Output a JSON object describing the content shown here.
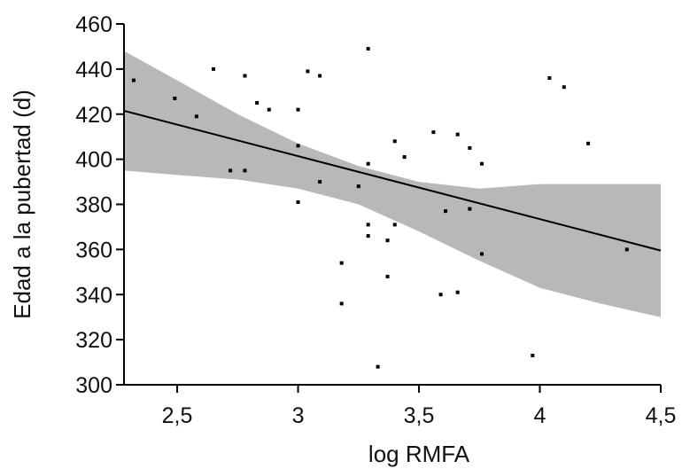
{
  "chart_data": {
    "type": "scatter",
    "xlabel": "log RMFA",
    "ylabel": "Edad a la pubertad (d)",
    "xlim": [
      2.28,
      4.5
    ],
    "ylim": [
      300,
      460
    ],
    "xticks": [
      2.5,
      3,
      3.5,
      4,
      4.5
    ],
    "xtick_labels": [
      "2,5",
      "3",
      "3,5",
      "4",
      "4,5"
    ],
    "yticks": [
      300,
      320,
      340,
      360,
      380,
      400,
      420,
      440,
      460
    ],
    "ytick_labels": [
      "300",
      "320",
      "340",
      "360",
      "380",
      "400",
      "420",
      "440",
      "460"
    ],
    "grid": false,
    "legend": "none",
    "points": [
      [
        2.32,
        435
      ],
      [
        2.49,
        427
      ],
      [
        2.58,
        419
      ],
      [
        2.65,
        440
      ],
      [
        2.72,
        395
      ],
      [
        2.78,
        437
      ],
      [
        2.78,
        395
      ],
      [
        2.83,
        425
      ],
      [
        2.88,
        422
      ],
      [
        3.0,
        422
      ],
      [
        3.0,
        406
      ],
      [
        3.0,
        381
      ],
      [
        3.04,
        439
      ],
      [
        3.09,
        437
      ],
      [
        3.09,
        390
      ],
      [
        3.18,
        354
      ],
      [
        3.18,
        336
      ],
      [
        3.25,
        388
      ],
      [
        3.29,
        449
      ],
      [
        3.29,
        398
      ],
      [
        3.29,
        371
      ],
      [
        3.29,
        366
      ],
      [
        3.33,
        308
      ],
      [
        3.37,
        364
      ],
      [
        3.37,
        348
      ],
      [
        3.4,
        408
      ],
      [
        3.4,
        371
      ],
      [
        3.44,
        401
      ],
      [
        3.56,
        412
      ],
      [
        3.59,
        340
      ],
      [
        3.61,
        377
      ],
      [
        3.66,
        411
      ],
      [
        3.66,
        341
      ],
      [
        3.71,
        405
      ],
      [
        3.71,
        378
      ],
      [
        3.76,
        398
      ],
      [
        3.76,
        358
      ],
      [
        3.97,
        313
      ],
      [
        4.04,
        436
      ],
      [
        4.1,
        432
      ],
      [
        4.2,
        407
      ],
      [
        4.36,
        360
      ]
    ],
    "regression_line": [
      [
        2.28,
        421.5
      ],
      [
        4.5,
        359.5
      ]
    ],
    "confidence_band": {
      "x": [
        2.28,
        2.5,
        2.75,
        3.0,
        3.25,
        3.5,
        3.75,
        4.0,
        4.25,
        4.5
      ],
      "upper": [
        448,
        435,
        420,
        407,
        397,
        390,
        387,
        389,
        389,
        389
      ],
      "lower": [
        395,
        393,
        391,
        387,
        380,
        368,
        355,
        343,
        336,
        330
      ]
    },
    "colors": {
      "band": "#b8b8b8",
      "line": "#000000",
      "points": "#000000",
      "axis": "#000000"
    }
  }
}
